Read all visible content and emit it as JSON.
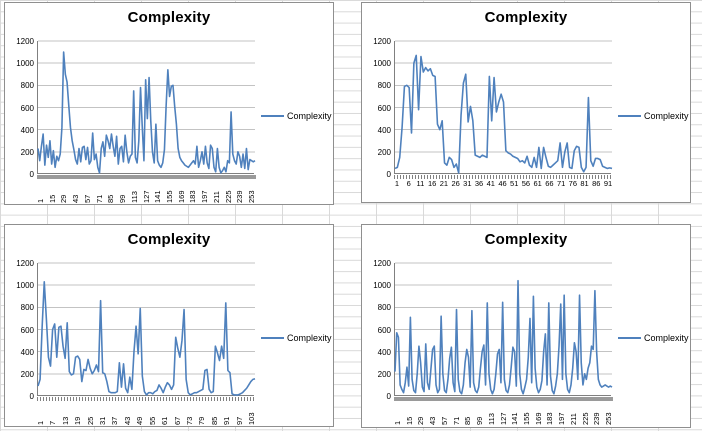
{
  "colors": {
    "series": "#4F81BD",
    "gridline": "#c3c3c3",
    "axis": "#808080",
    "tick_band": "#9a9a9a",
    "chart_border": "#8f8f8f",
    "excel_grid": "#d9d9d9",
    "title": "#000000"
  },
  "chart_data": [
    {
      "type": "line",
      "title": "Complexity",
      "legend": "Complexity",
      "legend_position": "right",
      "ylabel": "",
      "xlabel": "",
      "ylim": [
        0,
        1200
      ],
      "yticks": [
        0,
        200,
        400,
        600,
        800,
        1000,
        1200
      ],
      "grid": true,
      "xtick_labels": [
        "1",
        "15",
        "29",
        "43",
        "57",
        "71",
        "85",
        "99",
        "113",
        "127",
        "141",
        "155",
        "169",
        "183",
        "197",
        "211",
        "225",
        "239",
        "253"
      ],
      "xtick_rotation": 90,
      "axis_style": "band",
      "values": [
        230,
        120,
        250,
        360,
        80,
        260,
        150,
        300,
        90,
        210,
        60,
        160,
        120,
        180,
        420,
        1100,
        900,
        830,
        620,
        420,
        300,
        220,
        130,
        90,
        230,
        110,
        240,
        250,
        130,
        240,
        90,
        120,
        370,
        130,
        180,
        60,
        10,
        230,
        290,
        160,
        350,
        300,
        230,
        360,
        250,
        160,
        340,
        90,
        230,
        250,
        110,
        350,
        200,
        100,
        160,
        180,
        750,
        150,
        100,
        300,
        780,
        430,
        120,
        850,
        500,
        870,
        480,
        200,
        100,
        450,
        120,
        80,
        60,
        100,
        220,
        620,
        940,
        700,
        790,
        800,
        610,
        450,
        230,
        150,
        120,
        100,
        80,
        70,
        60,
        80,
        100,
        120,
        90,
        250,
        60,
        120,
        200,
        90,
        250,
        100,
        50,
        260,
        230,
        60,
        20,
        230,
        60,
        10,
        30,
        60,
        20,
        120,
        100,
        560,
        180,
        120,
        90,
        200,
        160,
        60,
        180,
        50,
        230,
        40,
        130,
        120,
        110,
        120
      ]
    },
    {
      "type": "line",
      "title": "Complexity",
      "legend": "Complexity",
      "legend_position": "right",
      "ylabel": "",
      "xlabel": "",
      "ylim": [
        0,
        1200
      ],
      "yticks": [
        0,
        200,
        400,
        600,
        800,
        1000,
        1200
      ],
      "grid": true,
      "xtick_labels": [
        "1",
        "6",
        "11",
        "16",
        "21",
        "26",
        "31",
        "36",
        "41",
        "46",
        "51",
        "56",
        "61",
        "66",
        "71",
        "76",
        "81",
        "86",
        "91"
      ],
      "xtick_rotation": 0,
      "axis_style": "comb",
      "values": [
        50,
        60,
        150,
        420,
        790,
        800,
        780,
        370,
        1000,
        1070,
        580,
        1060,
        920,
        960,
        930,
        950,
        890,
        880,
        450,
        400,
        480,
        100,
        80,
        150,
        130,
        60,
        90,
        10,
        530,
        820,
        900,
        470,
        610,
        480,
        170,
        160,
        150,
        170,
        160,
        150,
        880,
        480,
        870,
        560,
        650,
        720,
        650,
        210,
        190,
        180,
        160,
        150,
        140,
        110,
        120,
        100,
        160,
        80,
        60,
        150,
        60,
        240,
        50,
        240,
        150,
        70,
        60,
        80,
        100,
        120,
        280,
        60,
        200,
        280,
        60,
        50,
        210,
        250,
        240,
        60,
        20,
        60,
        690,
        120,
        70,
        140,
        140,
        130,
        70,
        60,
        50,
        55,
        50
      ]
    },
    {
      "type": "line",
      "title": "Complexity",
      "legend": "Complexity",
      "legend_position": "right",
      "ylabel": "",
      "xlabel": "",
      "ylim": [
        0,
        1200
      ],
      "yticks": [
        0,
        200,
        400,
        600,
        800,
        1000,
        1200
      ],
      "grid": true,
      "xtick_labels": [
        "1",
        "7",
        "13",
        "19",
        "25",
        "31",
        "37",
        "43",
        "49",
        "55",
        "61",
        "67",
        "73",
        "79",
        "85",
        "91",
        "97",
        "103"
      ],
      "xtick_rotation": 90,
      "axis_style": "comb",
      "values": [
        90,
        150,
        630,
        1030,
        700,
        350,
        270,
        600,
        650,
        350,
        620,
        630,
        450,
        340,
        660,
        220,
        190,
        200,
        350,
        360,
        330,
        130,
        240,
        230,
        330,
        250,
        200,
        230,
        280,
        220,
        860,
        210,
        200,
        130,
        40,
        30,
        30,
        30,
        40,
        300,
        80,
        290,
        70,
        30,
        170,
        60,
        400,
        630,
        380,
        790,
        180,
        40,
        10,
        30,
        30,
        20,
        40,
        50,
        100,
        70,
        30,
        80,
        120,
        100,
        60,
        100,
        530,
        430,
        350,
        500,
        780,
        150,
        30,
        10,
        20,
        30,
        30,
        40,
        50,
        60,
        230,
        240,
        60,
        30,
        40,
        450,
        390,
        320,
        450,
        340,
        840,
        230,
        210,
        20,
        10,
        10,
        10,
        20,
        30,
        50,
        70,
        100,
        130,
        150,
        155
      ]
    },
    {
      "type": "line",
      "title": "Complexity",
      "legend": "Complexity",
      "legend_position": "right",
      "ylabel": "",
      "xlabel": "",
      "ylim": [
        0,
        1200
      ],
      "yticks": [
        0,
        200,
        400,
        600,
        800,
        1000,
        1200
      ],
      "grid": true,
      "xtick_labels": [
        "1",
        "15",
        "29",
        "43",
        "57",
        "71",
        "85",
        "99",
        "113",
        "127",
        "141",
        "155",
        "169",
        "183",
        "197",
        "211",
        "225",
        "239",
        "253"
      ],
      "xtick_rotation": 90,
      "axis_style": "band",
      "values": [
        220,
        570,
        530,
        100,
        60,
        30,
        120,
        260,
        90,
        710,
        150,
        50,
        30,
        200,
        450,
        300,
        80,
        40,
        470,
        120,
        60,
        240,
        420,
        450,
        100,
        30,
        60,
        720,
        200,
        50,
        30,
        150,
        340,
        440,
        120,
        40,
        780,
        150,
        40,
        20,
        100,
        300,
        420,
        350,
        80,
        770,
        120,
        50,
        30,
        80,
        250,
        400,
        460,
        100,
        840,
        200,
        60,
        20,
        60,
        200,
        380,
        420,
        120,
        845,
        150,
        50,
        30,
        100,
        260,
        440,
        400,
        90,
        1040,
        200,
        60,
        20,
        80,
        150,
        350,
        700,
        120,
        900,
        250,
        80,
        30,
        60,
        140,
        400,
        560,
        100,
        840,
        180,
        50,
        20,
        90,
        200,
        450,
        830,
        150,
        910,
        200,
        60,
        30,
        100,
        250,
        480,
        400,
        150,
        910,
        300,
        100,
        200,
        150,
        250,
        300,
        450,
        420,
        950,
        400,
        150,
        100,
        80,
        90,
        100,
        90,
        80,
        90,
        80
      ]
    }
  ]
}
